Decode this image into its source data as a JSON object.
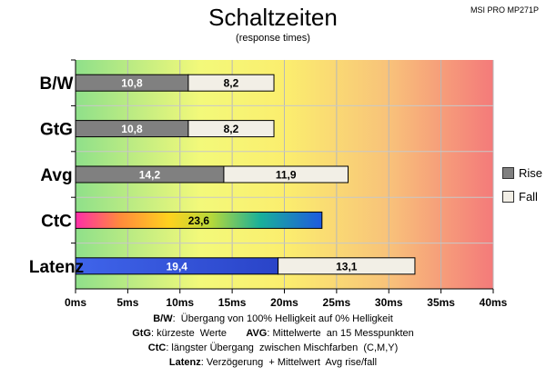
{
  "chart_data": {
    "type": "bar",
    "orientation": "horizontal",
    "stacked": true,
    "title": "Schaltzeiten",
    "subtitle": "(response times)",
    "model": "MSI PRO MP271P",
    "categories": [
      "B/W",
      "GtG",
      "Avg",
      "CtC",
      "Latenz"
    ],
    "series": [
      {
        "name": "Rise",
        "color": "#808080",
        "values": [
          10.8,
          10.8,
          14.2,
          23.6,
          19.4
        ],
        "labels": [
          "10,8",
          "10,8",
          "14,2",
          "23,6",
          "19,4"
        ]
      },
      {
        "name": "Fall",
        "color": "#f2efe6",
        "values": [
          8.2,
          8.2,
          11.9,
          null,
          13.1
        ],
        "labels": [
          "8,2",
          "8,2",
          "11,9",
          "",
          "13,1"
        ]
      }
    ],
    "xlim": [
      0,
      40
    ],
    "xticks": [
      "0ms",
      "5ms",
      "10ms",
      "15ms",
      "20ms",
      "25ms",
      "30ms",
      "35ms",
      "40ms"
    ],
    "legend": "right",
    "grid": true
  },
  "notes": [
    {
      "parts": [
        {
          "b": "B/W"
        },
        {
          "t": ":  Übergang von 100% Helligkeit auf 0% Helligkeit"
        }
      ]
    },
    {
      "parts": [
        {
          "b": "GtG"
        },
        {
          "t": ": kürzeste  Werte       "
        },
        {
          "b": "AVG"
        },
        {
          "t": ": Mittelwerte  an 15 Messpunkten"
        }
      ]
    },
    {
      "parts": [
        {
          "b": "CtC"
        },
        {
          "t": ": längster Übergang  zwischen Mischfarben  (C,M,Y)"
        }
      ]
    },
    {
      "parts": [
        {
          "b": "Latenz"
        },
        {
          "t": ": Verzögerung  + Mittelwert  Avg rise/fall"
        }
      ]
    }
  ]
}
